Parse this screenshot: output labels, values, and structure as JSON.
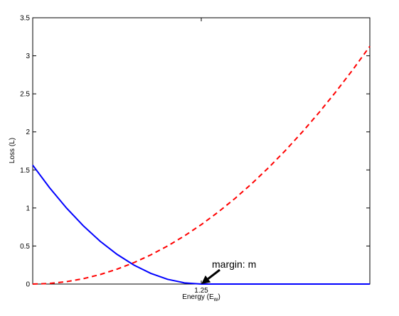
{
  "chart_data": {
    "type": "line",
    "xlabel": [
      "Energy (E",
      "w",
      ")"
    ],
    "ylabel": "Loss (L)",
    "x": [
      0,
      0.125,
      0.25,
      0.375,
      0.5,
      0.625,
      0.75,
      0.875,
      1,
      1.125,
      1.25,
      1.375,
      1.5,
      1.625,
      1.75,
      1.875,
      2,
      2.125,
      2.25,
      2.375,
      2.5
    ],
    "series": [
      {
        "color": "#0000ff",
        "linestyle": "solid",
        "values": [
          1.5625,
          1.265625,
          1,
          0.765625,
          0.5625,
          0.390625,
          0.25,
          0.140625,
          0.0625,
          0.015625,
          0,
          0,
          0,
          0,
          0,
          0,
          0,
          0,
          0,
          0,
          0
        ]
      },
      {
        "color": "#ff0000",
        "linestyle": "dashed",
        "values": [
          0,
          0.0078125,
          0.03125,
          0.0703125,
          0.125,
          0.1953125,
          0.28125,
          0.3828125,
          0.5,
          0.6328125,
          0.78125,
          0.9453125,
          1.125,
          1.3203125,
          1.53125,
          1.7578125,
          2,
          2.2578125,
          2.53125,
          2.8203125,
          3.125
        ]
      }
    ],
    "xlim": [
      0,
      2.5
    ],
    "xticks": [
      1.25
    ],
    "ylim": [
      0,
      3.5
    ],
    "yticks": [
      0,
      0.5,
      1,
      1.5,
      2,
      2.5,
      3,
      3.5
    ],
    "annotations": [
      {
        "text": "margin: m",
        "x": 1.25,
        "y": 0
      }
    ]
  }
}
